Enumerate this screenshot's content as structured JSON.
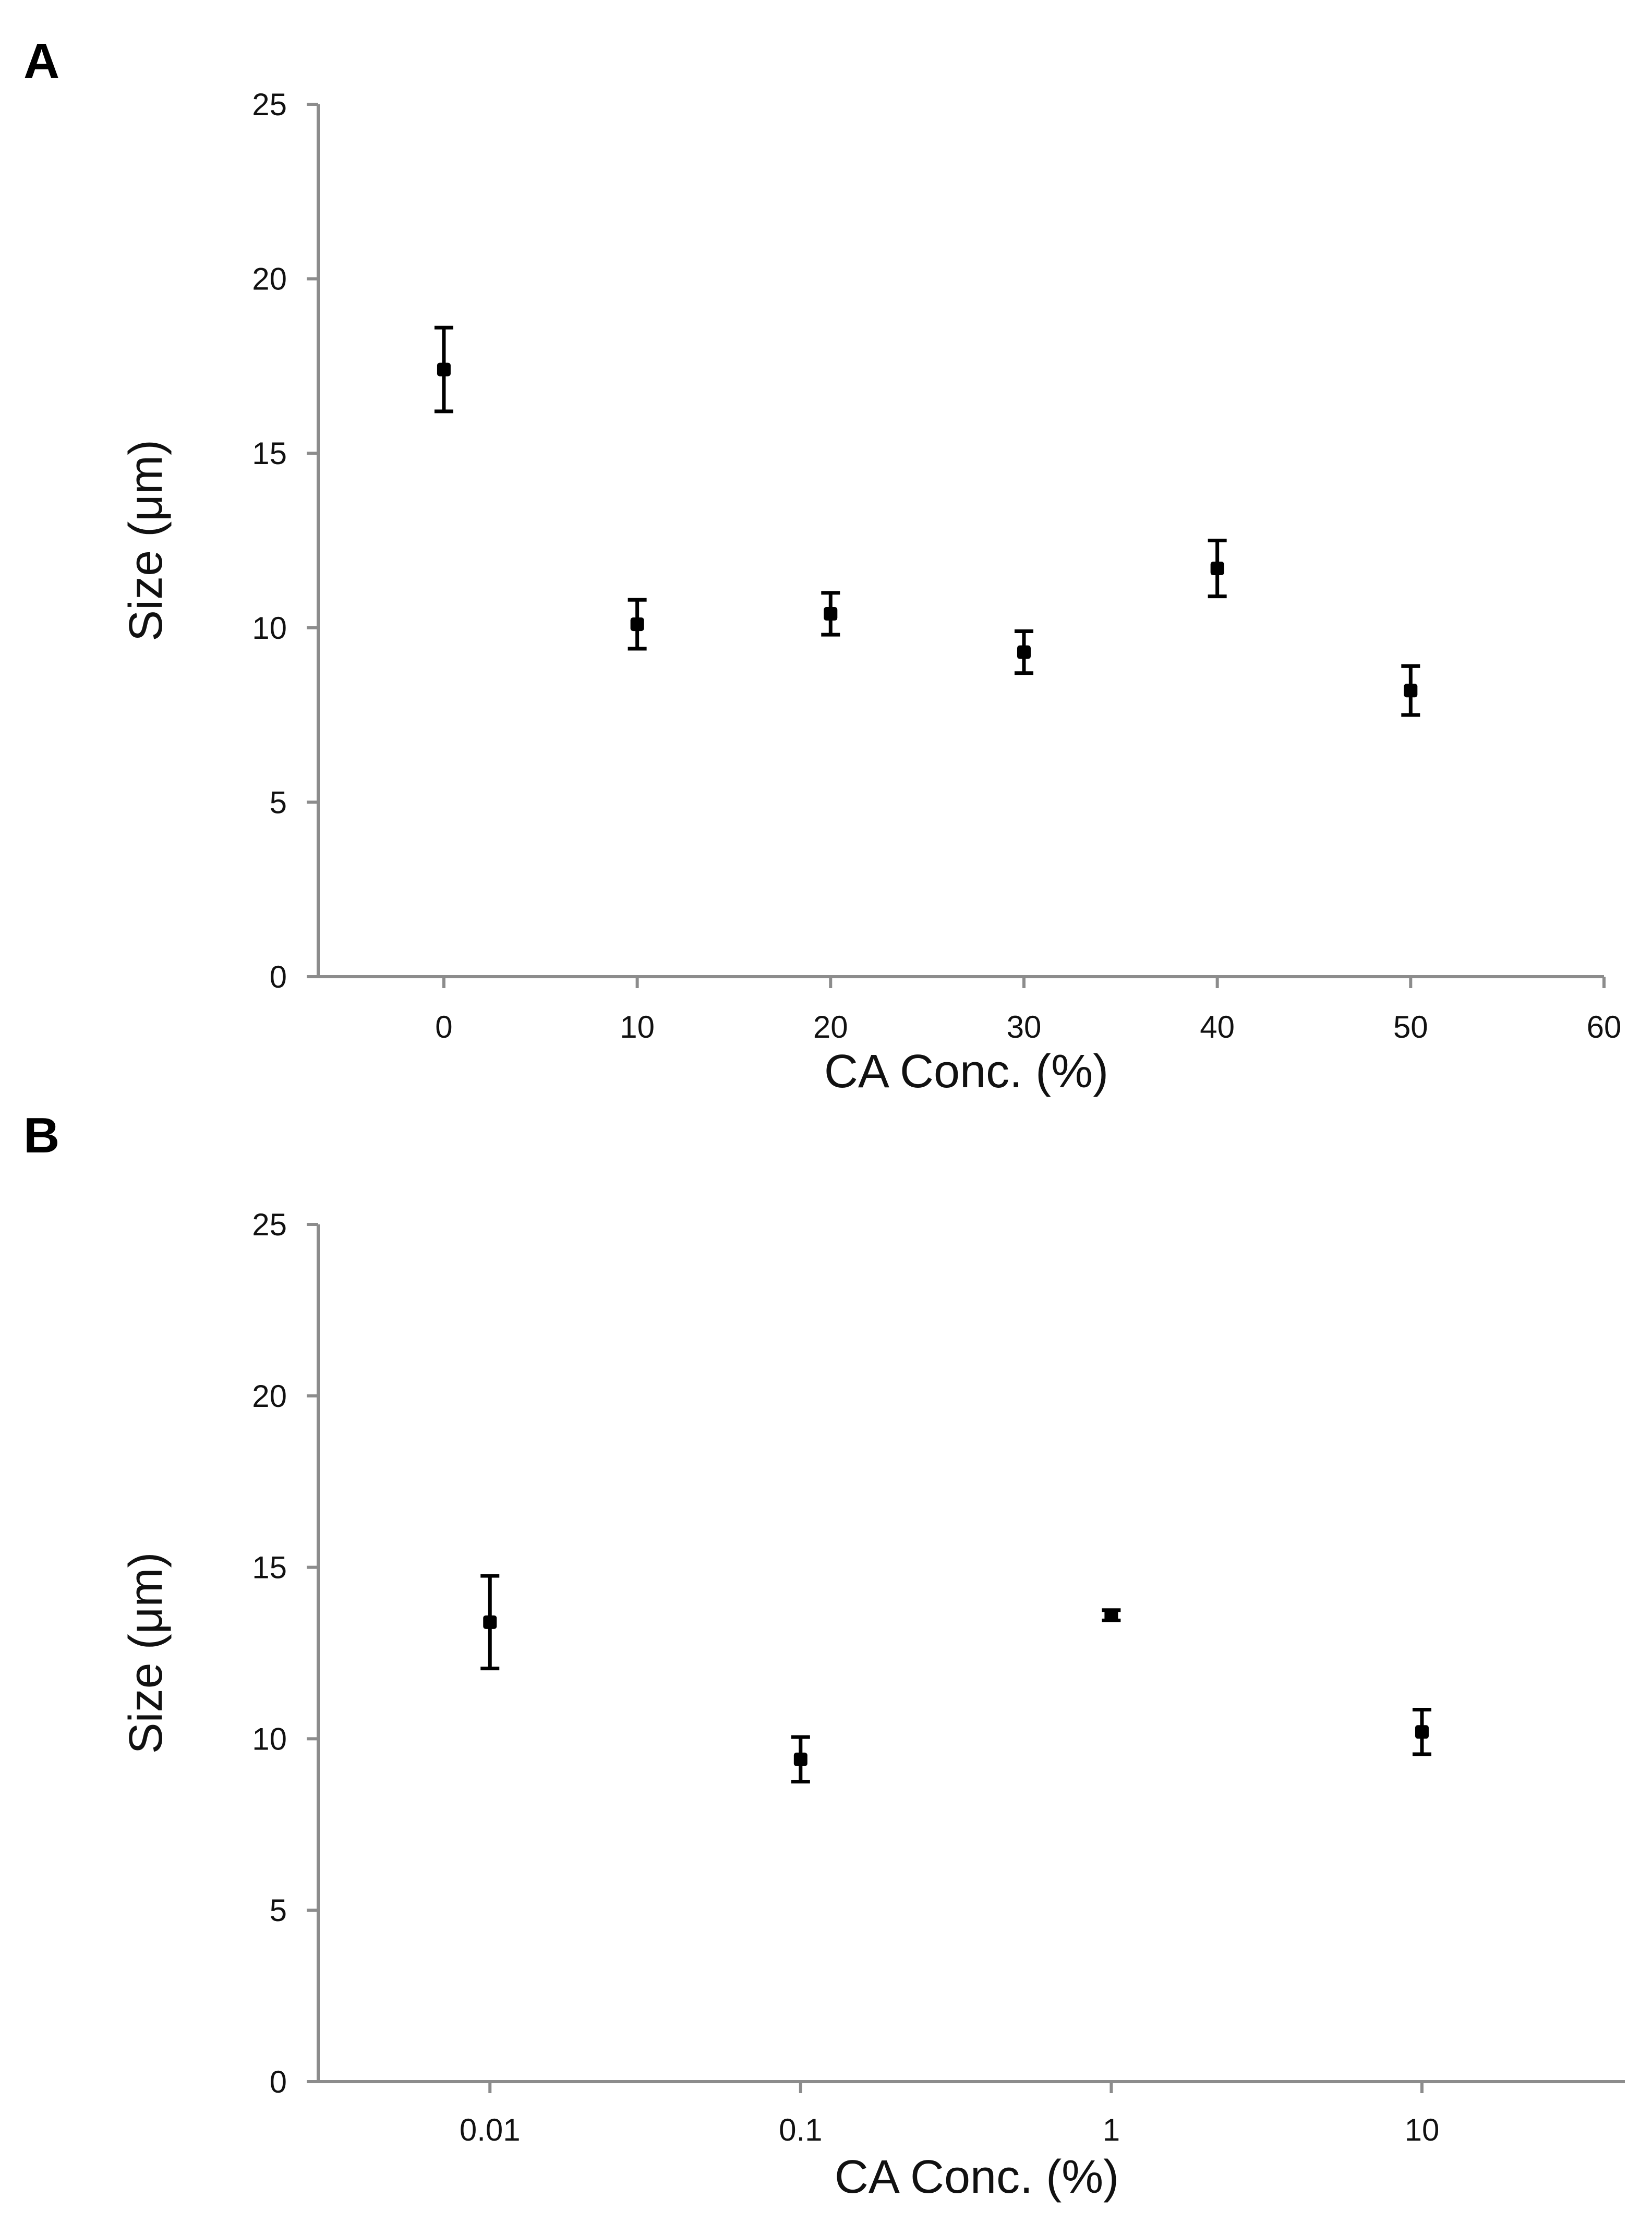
{
  "chart_data": [
    {
      "panel": "A",
      "type": "scatter",
      "xscale": "linear",
      "xlabel": "CA Conc. (%)",
      "ylabel": "Size (μm)",
      "xlim": [
        -6.5,
        60
      ],
      "ylim": [
        0,
        25
      ],
      "xticks": [
        0,
        10,
        20,
        30,
        40,
        50,
        60
      ],
      "xtick_labels": [
        "0",
        "10",
        "20",
        "30",
        "40",
        "50",
        "60"
      ],
      "yticks": [
        0,
        5,
        10,
        15,
        20,
        25
      ],
      "ytick_labels": [
        "0",
        "5",
        "10",
        "15",
        "20",
        "25"
      ],
      "grid": false,
      "series": [
        {
          "name": "Size",
          "points": [
            {
              "x": 0,
              "y": 17.4,
              "err": 1.2
            },
            {
              "x": 10,
              "y": 10.1,
              "err": 0.7
            },
            {
              "x": 20,
              "y": 10.4,
              "err": 0.6
            },
            {
              "x": 30,
              "y": 9.3,
              "err": 0.6
            },
            {
              "x": 40,
              "y": 11.7,
              "err": 0.8
            },
            {
              "x": 50,
              "y": 8.2,
              "err": 0.7
            }
          ]
        }
      ]
    },
    {
      "panel": "B",
      "type": "scatter",
      "xscale": "log",
      "xlabel": "CA Conc. (%)",
      "ylabel": "Size (μm)",
      "xlim": [
        0.0028,
        45
      ],
      "ylim": [
        0,
        25
      ],
      "xticks": [
        0.01,
        0.1,
        1,
        10
      ],
      "xtick_labels": [
        "0.01",
        "0.1",
        "1",
        "10"
      ],
      "yticks": [
        0,
        5,
        10,
        15,
        20,
        25
      ],
      "ytick_labels": [
        "0",
        "5",
        "10",
        "15",
        "20",
        "25"
      ],
      "grid": false,
      "series": [
        {
          "name": "Size",
          "points": [
            {
              "x": 0.01,
              "y": 13.4,
              "err": 1.35
            },
            {
              "x": 0.1,
              "y": 9.4,
              "err": 0.65
            },
            {
              "x": 1,
              "y": 13.6,
              "err": 0.15
            },
            {
              "x": 10,
              "y": 10.2,
              "err": 0.65
            }
          ]
        }
      ]
    }
  ]
}
